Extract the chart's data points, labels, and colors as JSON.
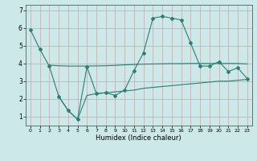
{
  "title": "",
  "xlabel": "Humidex (Indice chaleur)",
  "xlim": [
    -0.5,
    23.5
  ],
  "ylim": [
    0.5,
    7.3
  ],
  "yticks": [
    1,
    2,
    3,
    4,
    5,
    6,
    7
  ],
  "xticks": [
    0,
    1,
    2,
    3,
    4,
    5,
    6,
    7,
    8,
    9,
    10,
    11,
    12,
    13,
    14,
    15,
    16,
    17,
    18,
    19,
    20,
    21,
    22,
    23
  ],
  "bg_color": "#cce8e8",
  "line_color": "#2e7d72",
  "grid_color": "#e89898",
  "line1_x": [
    0,
    1,
    2,
    3,
    4,
    5,
    6,
    7,
    8,
    9,
    10,
    11,
    12,
    13,
    14,
    15,
    16,
    17,
    18,
    19,
    20,
    21,
    22,
    23
  ],
  "line1_y": [
    5.9,
    4.8,
    3.85,
    2.15,
    1.35,
    0.85,
    3.8,
    2.3,
    2.35,
    2.2,
    2.5,
    3.6,
    4.6,
    6.55,
    6.65,
    6.55,
    6.45,
    5.15,
    3.85,
    3.85,
    4.1,
    3.55,
    3.75,
    3.15
  ],
  "line2_x": [
    2,
    3,
    4,
    5,
    6,
    7,
    8,
    9,
    10,
    11,
    12,
    13,
    14,
    15,
    16,
    17,
    18,
    19,
    20,
    21,
    22,
    23
  ],
  "line2_y": [
    3.9,
    3.87,
    3.85,
    3.85,
    3.85,
    3.86,
    3.87,
    3.89,
    3.92,
    3.94,
    3.96,
    3.97,
    3.98,
    3.99,
    3.99,
    4.0,
    4.0,
    4.0,
    4.0,
    4.0,
    4.0,
    3.97
  ],
  "line3_x": [
    3,
    4,
    5,
    6,
    7,
    8,
    9,
    10,
    11,
    12,
    13,
    14,
    15,
    16,
    17,
    18,
    19,
    20,
    21,
    22,
    23
  ],
  "line3_y": [
    2.15,
    1.35,
    0.85,
    2.2,
    2.3,
    2.35,
    2.4,
    2.45,
    2.5,
    2.6,
    2.65,
    2.7,
    2.75,
    2.8,
    2.85,
    2.9,
    2.95,
    3.0,
    3.0,
    3.05,
    3.1
  ]
}
